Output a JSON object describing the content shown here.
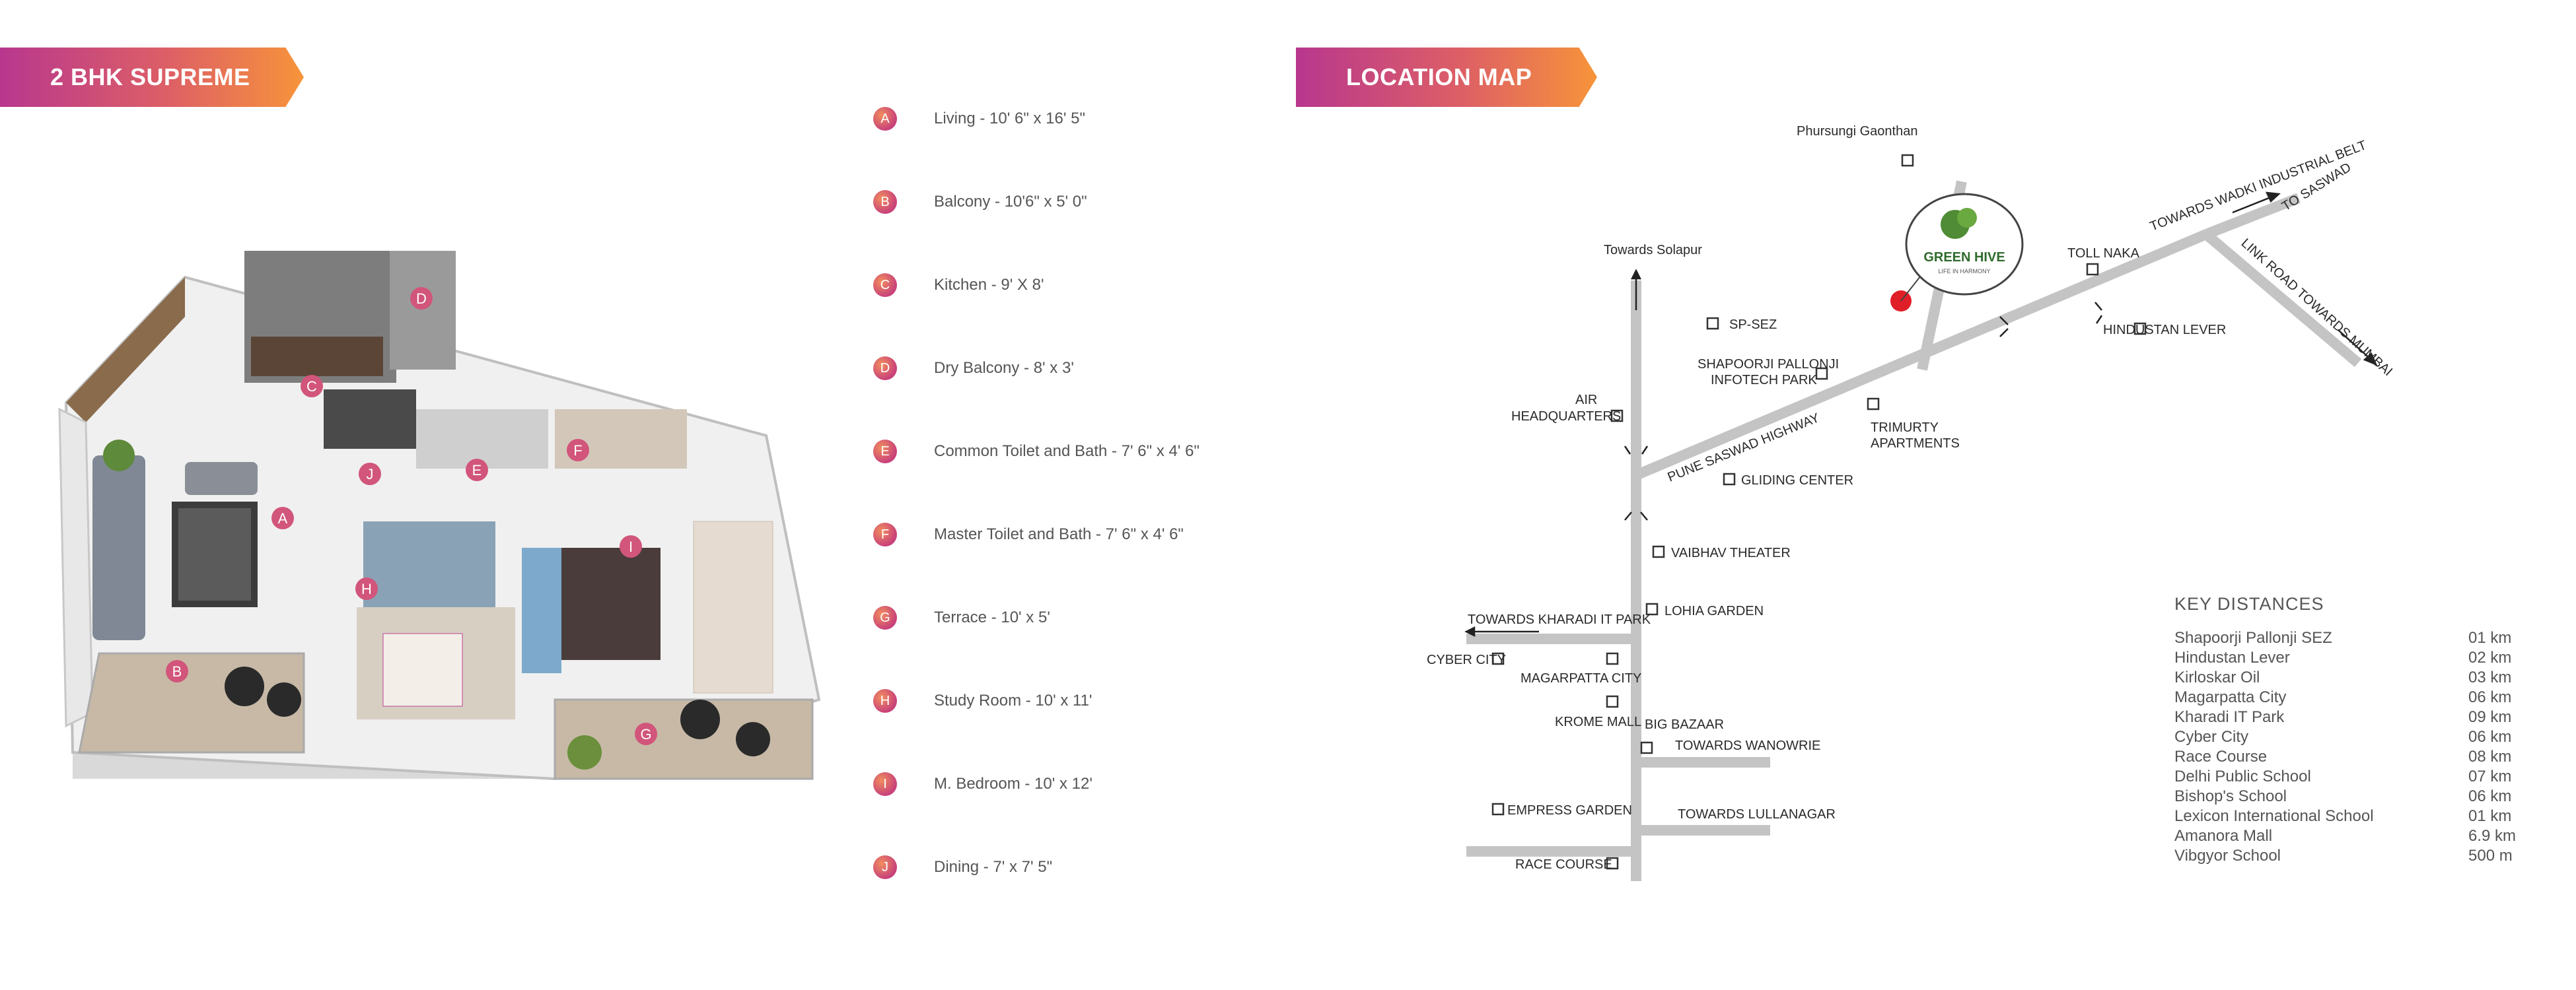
{
  "left_title": "2 BHK SUPREME",
  "right_title": "LOCATION MAP",
  "rooms": [
    {
      "letter": "A",
      "label": "Living - 10' 6\" x 16' 5\""
    },
    {
      "letter": "B",
      "label": "Balcony - 10'6\" x 5' 0\""
    },
    {
      "letter": "C",
      "label": "Kitchen - 9' X 8'"
    },
    {
      "letter": "D",
      "label": "Dry Balcony - 8' x 3'"
    },
    {
      "letter": "E",
      "label": "Common Toilet and Bath - 7' 6\" x 4' 6\""
    },
    {
      "letter": "F",
      "label": "Master Toilet and Bath - 7' 6\" x 4' 6\""
    },
    {
      "letter": "G",
      "label": "Terrace - 10' x 5'"
    },
    {
      "letter": "H",
      "label": "Study Room - 10' x 11'"
    },
    {
      "letter": "I",
      "label": "M. Bedroom - 10' x 12'"
    },
    {
      "letter": "J",
      "label": "Dining - 7' x 7' 5\""
    }
  ],
  "map": {
    "phursungi": "Phursungi Gaonthan",
    "towards_solapur": "Towards Solapur",
    "logo_name": "GREEN HIVE",
    "logo_tag": "LIFE IN HARMONY",
    "toll_naka": "TOLL NAKA",
    "wadki": "TOWARDS WADKI INDUSTRIAL BELT",
    "saswad": "TO SASWAD",
    "link_road": "LINK ROAD TOWARDS MUMBAI",
    "hindustan_lever": "HINDUSTAN LEVER",
    "sp_sez": "SP-SEZ",
    "shapoorji_1": "SHAPOORJI PALLONJI",
    "shapoorji_2": "INFOTECH PARK",
    "air_1": "AIR",
    "air_2": "HEADQUARTERS",
    "pune_saswad": "PUNE SASWAD HIGHWAY",
    "trimurty_1": "TRIMURTY",
    "trimurty_2": "APARTMENTS",
    "gliding": "GLIDING CENTER",
    "vaibhav": "VAIBHAV THEATER",
    "towards_kharadi": "TOWARDS KHARADI IT PARK",
    "lohia": "LOHIA GARDEN",
    "cyber_city": "CYBER CITY",
    "magarpatta": "MAGARPATTA CITY",
    "krome": "KROME MALL",
    "big_bazaar": "BIG BAZAAR",
    "wanowrie": "TOWARDS WANOWRIE",
    "empress": "EMPRESS GARDEN",
    "lullanagar": "TOWARDS LULLANAGAR",
    "race_course": "RACE COURSE"
  },
  "key_distances": {
    "title": "KEY DISTANCES",
    "rows": [
      {
        "place": "Shapoorji Pallonji SEZ",
        "dist": "01  km"
      },
      {
        "place": "Hindustan Lever",
        "dist": "02 km"
      },
      {
        "place": "Kirloskar Oil",
        "dist": "03 km"
      },
      {
        "place": "Magarpatta City",
        "dist": "06 km"
      },
      {
        "place": "Kharadi IT Park",
        "dist": "09 km"
      },
      {
        "place": "Cyber City",
        "dist": "06 km"
      },
      {
        "place": "Race Course",
        "dist": "08 km"
      },
      {
        "place": "Delhi Public School",
        "dist": "07 km"
      },
      {
        "place": "Bishop's School",
        "dist": "06 km"
      },
      {
        "place": "Lexicon International School",
        "dist": "01 km"
      },
      {
        "place": "Amanora Mall",
        "dist": "6.9 km"
      },
      {
        "place": "Vibgyor School",
        "dist": "500 m"
      }
    ]
  }
}
